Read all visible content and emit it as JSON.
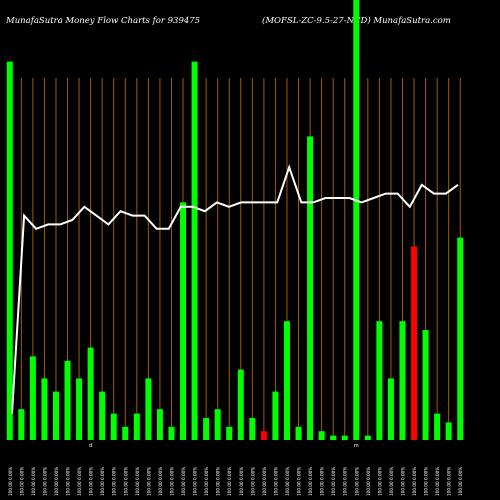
{
  "header": {
    "left": "MunafaSutra  Money Flow  Charts for 939475",
    "right": "(MOFSL-ZC-9.5-27-NCD) MunafaSutra.com"
  },
  "chart_data": {
    "type": "bar",
    "ylim": [
      0,
      100
    ],
    "grid": "vertical",
    "bar_values": [
      86,
      7,
      19,
      14,
      11,
      18,
      14,
      21,
      11,
      6,
      3,
      6,
      14,
      7,
      3,
      54,
      86,
      5,
      7,
      3,
      16,
      5,
      2,
      11,
      27,
      3,
      69,
      2,
      1,
      1,
      100,
      1,
      27,
      14,
      27,
      44,
      25,
      6,
      4,
      46
    ],
    "bar_colors": [
      "#00ff00",
      "#00ff00",
      "#00ff00",
      "#00ff00",
      "#00ff00",
      "#00ff00",
      "#00ff00",
      "#00ff00",
      "#00ff00",
      "#00ff00",
      "#00ff00",
      "#00ff00",
      "#00ff00",
      "#00ff00",
      "#00ff00",
      "#00ff00",
      "#00ff00",
      "#00ff00",
      "#00ff00",
      "#00ff00",
      "#00ff00",
      "#00ff00",
      "#ff0000",
      "#00ff00",
      "#00ff00",
      "#00ff00",
      "#00ff00",
      "#00ff00",
      "#00ff00",
      "#00ff00",
      "#00ff00",
      "#00ff00",
      "#00ff00",
      "#00ff00",
      "#00ff00",
      "#ff0000",
      "#00ff00",
      "#00ff00",
      "#00ff00",
      "#00ff00"
    ],
    "line_values": [
      6,
      51,
      48,
      49,
      49,
      50,
      53,
      51,
      49,
      52,
      51,
      51,
      48,
      48,
      53,
      53,
      52,
      54,
      53,
      54,
      54,
      54,
      54,
      62,
      54,
      54,
      55,
      55,
      55,
      54,
      55,
      56,
      56,
      53,
      58,
      56,
      56,
      58
    ],
    "line_color": "#ffffff",
    "tick_labels": [
      "100.00 0.00%",
      "100.00 0.00%",
      "100.00 0.00%",
      "100.00 0.00%",
      "100.00 0.00%",
      "100.00 0.00%",
      "100.00 0.00%",
      "100.00 0.00%",
      "100.00 0.00%",
      "100.00 0.00%",
      "100.00 0.00%",
      "100.00 0.00%",
      "100.00 0.00%",
      "100.00 0.00%",
      "100.00 0.00%",
      "100.00 0.00%",
      "100.00 0.00%",
      "100.00 0.00%",
      "100.00 0.00%",
      "100.00 0.00%",
      "100.00 0.00%",
      "100.00 0.00%",
      "100.00 0.00%",
      "100.00 0.00%",
      "100.00 0.00%",
      "100.00 0.00%",
      "100.00 0.00%",
      "100.00 0.00%",
      "100.00 0.00%",
      "100.00 0.00%",
      "100.00 0.00%",
      "100.00 0.00%",
      "100.00 0.00%",
      "100.00 0.00%",
      "100.00 0.00%",
      "100.00 0.00%",
      "100.00 0.00%",
      "100.00 0.00%",
      "100.00 0.00%",
      "100.00 0.00%"
    ],
    "axis_marks": [
      {
        "index": 7,
        "label": "d"
      },
      {
        "index": 30,
        "label": "m"
      }
    ]
  }
}
